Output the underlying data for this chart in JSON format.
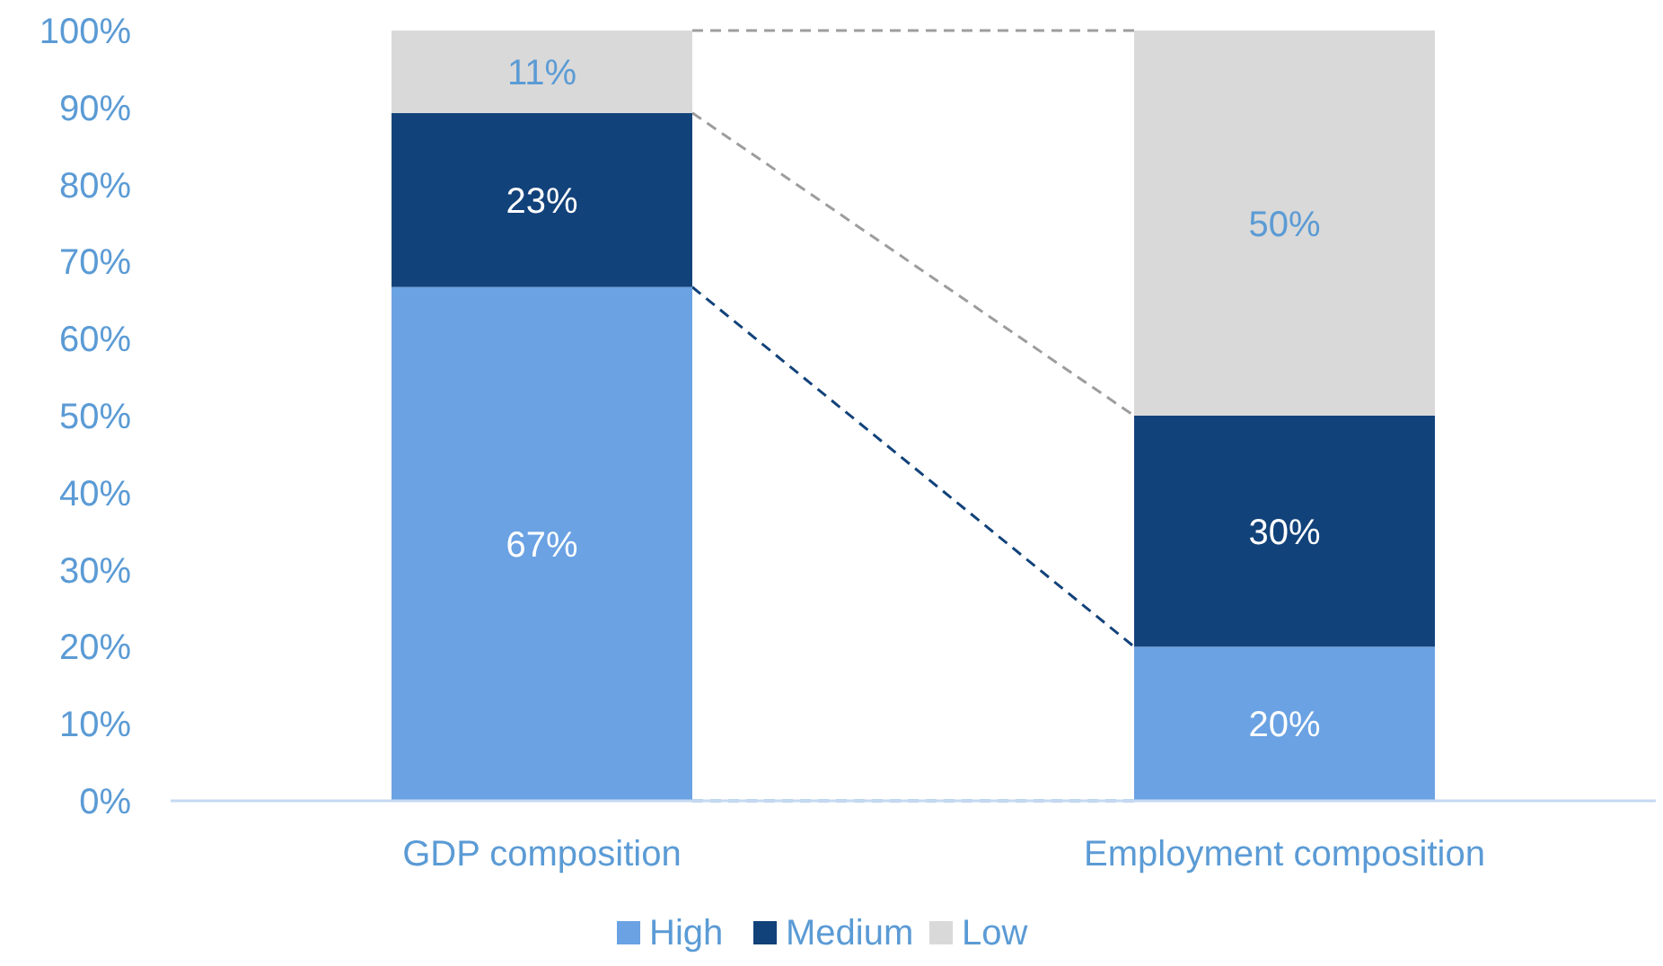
{
  "chart_data": {
    "type": "bar",
    "stacked": true,
    "categories": [
      "GDP composition",
      "Employment composition"
    ],
    "series": [
      {
        "name": "High",
        "color": "#6aa2e3",
        "values": [
          66.7,
          20
        ],
        "value_labels": [
          "67%",
          "20%"
        ]
      },
      {
        "name": "Medium",
        "color": "#12427a",
        "values": [
          22.6,
          30
        ],
        "value_labels": [
          "23%",
          "30%"
        ]
      },
      {
        "name": "Low",
        "color": "#d9d9d9",
        "values": [
          10.7,
          50
        ],
        "value_labels": [
          "11%",
          "50%"
        ]
      }
    ],
    "ylim": [
      0,
      100
    ],
    "yticks": [
      {
        "value": 0,
        "label": "0%"
      },
      {
        "value": 10,
        "label": "10%"
      },
      {
        "value": 20,
        "label": "20%"
      },
      {
        "value": 30,
        "label": "30%"
      },
      {
        "value": 40,
        "label": "40%"
      },
      {
        "value": 50,
        "label": "50%"
      },
      {
        "value": 60,
        "label": "60%"
      },
      {
        "value": 70,
        "label": "70%"
      },
      {
        "value": 80,
        "label": "80%"
      },
      {
        "value": 90,
        "label": "90%"
      },
      {
        "value": 100,
        "label": "100%"
      }
    ],
    "grid": false,
    "legend": "bottom"
  }
}
